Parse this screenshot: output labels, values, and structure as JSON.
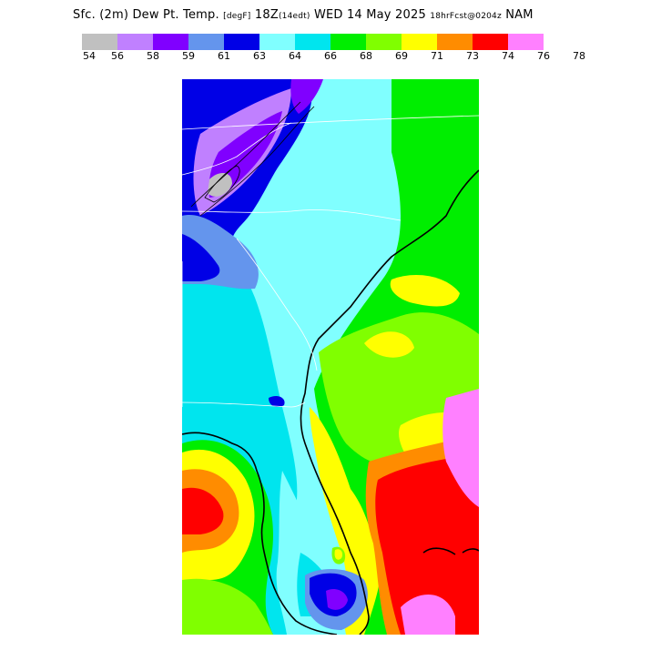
{
  "header": {
    "title_main": "Sfc. (2m) Dew Pt. Temp.",
    "unit": "[degF]",
    "valid": "18Z",
    "valid_local": "(14edt)",
    "day": "WED 14 May 2025",
    "forecast": "18hrFcst@0204z",
    "model": "NAM"
  },
  "legend": {
    "colors": [
      "#c0c0c0",
      "#c080ff",
      "#8000ff",
      "#6495ed",
      "#0000e6",
      "#80ffff",
      "#00e5ee",
      "#00ee00",
      "#80ff00",
      "#ffff00",
      "#ff8c00",
      "#ff0000",
      "#ff80ff"
    ],
    "ticks": [
      "54",
      "56",
      "58",
      "59",
      "61",
      "63",
      "64",
      "66",
      "68",
      "69",
      "71",
      "73",
      "74",
      "76",
      "78"
    ]
  },
  "map": {
    "region": "Southeastern United States",
    "palette": {
      "cyan_light": "#80ffff",
      "cyan": "#00e5ee",
      "green": "#00ee00",
      "lime": "#80ff00",
      "yellow": "#ffff00",
      "orange": "#ff8c00",
      "red": "#ff0000",
      "pink": "#ff80ff",
      "blue": "#0000e6",
      "cornflower": "#6495ed",
      "purple": "#8000ff",
      "lavender": "#c080ff",
      "gray": "#c0c0c0"
    }
  }
}
